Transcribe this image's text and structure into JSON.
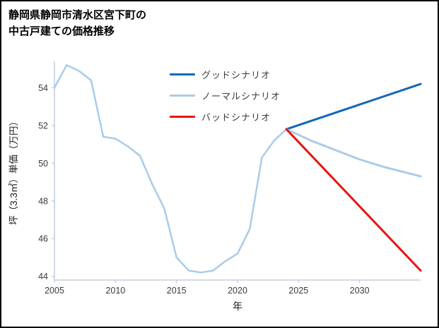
{
  "title": {
    "line1": "静岡県静岡市清水区宮下町の",
    "line2": "中古戸建ての価格推移"
  },
  "colors": {
    "good": "#1467b8",
    "normal": "#a9cce9",
    "bad": "#e8150f",
    "axis": "#c5cede",
    "tick_text": "#3a3a3a"
  },
  "legend": {
    "items": [
      {
        "label": "グッドシナリオ",
        "color": "#1467b8"
      },
      {
        "label": "ノーマルシナリオ",
        "color": "#a9cce9"
      },
      {
        "label": "バッドシナリオ",
        "color": "#e8150f"
      }
    ]
  },
  "chart_data": {
    "type": "line",
    "title": "静岡県静岡市清水区宮下町の中古戸建ての価格推移",
    "xlabel": "年",
    "ylabel": "坪（3.3㎡）単価（万円）",
    "xlim": [
      2005,
      2035
    ],
    "ylim": [
      43.8,
      55.4
    ],
    "xticks": [
      2005,
      2010,
      2015,
      2020,
      2025,
      2030
    ],
    "yticks": [
      44,
      46,
      48,
      50,
      52,
      54
    ],
    "grid": false,
    "legend_position": "upper center",
    "series": [
      {
        "name": "historical",
        "color": "#a9cce9",
        "width": 2.5,
        "in_legend": false,
        "x": [
          2005,
          2006,
          2007,
          2008,
          2009,
          2010,
          2011,
          2012,
          2013,
          2014,
          2015,
          2016,
          2017,
          2018,
          2019,
          2020,
          2021,
          2022,
          2023,
          2024
        ],
        "y": [
          54.0,
          55.2,
          54.9,
          54.4,
          51.4,
          51.3,
          50.9,
          50.4,
          48.9,
          47.6,
          45.0,
          44.3,
          44.2,
          44.3,
          44.8,
          45.2,
          46.5,
          50.3,
          51.2,
          51.8
        ]
      },
      {
        "name": "グッドシナリオ",
        "color": "#1467b8",
        "width": 3,
        "in_legend": true,
        "x": [
          2024,
          2035
        ],
        "y": [
          51.8,
          54.2
        ]
      },
      {
        "name": "ノーマルシナリオ",
        "color": "#a9cce9",
        "width": 3,
        "in_legend": true,
        "x": [
          2024,
          2026,
          2028,
          2030,
          2032,
          2035
        ],
        "y": [
          51.8,
          51.2,
          50.7,
          50.2,
          49.8,
          49.3
        ]
      },
      {
        "name": "バッドシナリオ",
        "color": "#e8150f",
        "width": 3,
        "in_legend": true,
        "x": [
          2024,
          2035
        ],
        "y": [
          51.8,
          44.3
        ]
      }
    ]
  }
}
